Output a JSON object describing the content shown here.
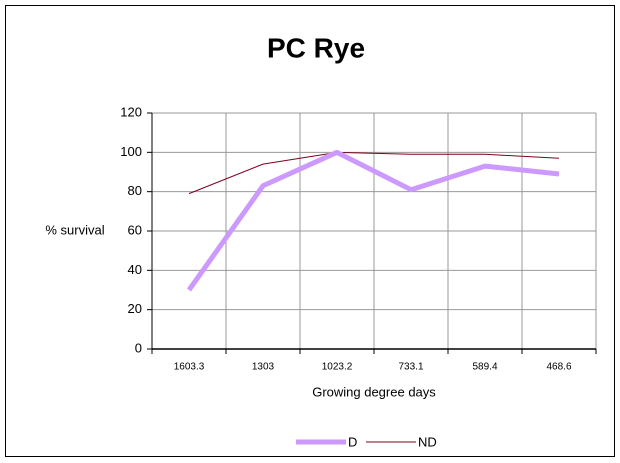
{
  "chart_data": {
    "type": "line",
    "title": "PC Rye",
    "x_label": "Growing degree days",
    "y_label": "% survival",
    "categories": [
      "1603.3",
      "1303",
      "1023.2",
      "733.1",
      "589.4",
      "468.6"
    ],
    "series": [
      {
        "name": "D",
        "color": "#cc99ff",
        "values": [
          30,
          83,
          100,
          81,
          93,
          89
        ]
      },
      {
        "name": "ND",
        "color": "#800020",
        "values": [
          79,
          94,
          100,
          99,
          99,
          97
        ]
      }
    ],
    "ylim": [
      0,
      120
    ],
    "yticks": [
      0,
      20,
      40,
      60,
      80,
      100,
      120
    ],
    "grid": true,
    "legend": "bottom"
  }
}
